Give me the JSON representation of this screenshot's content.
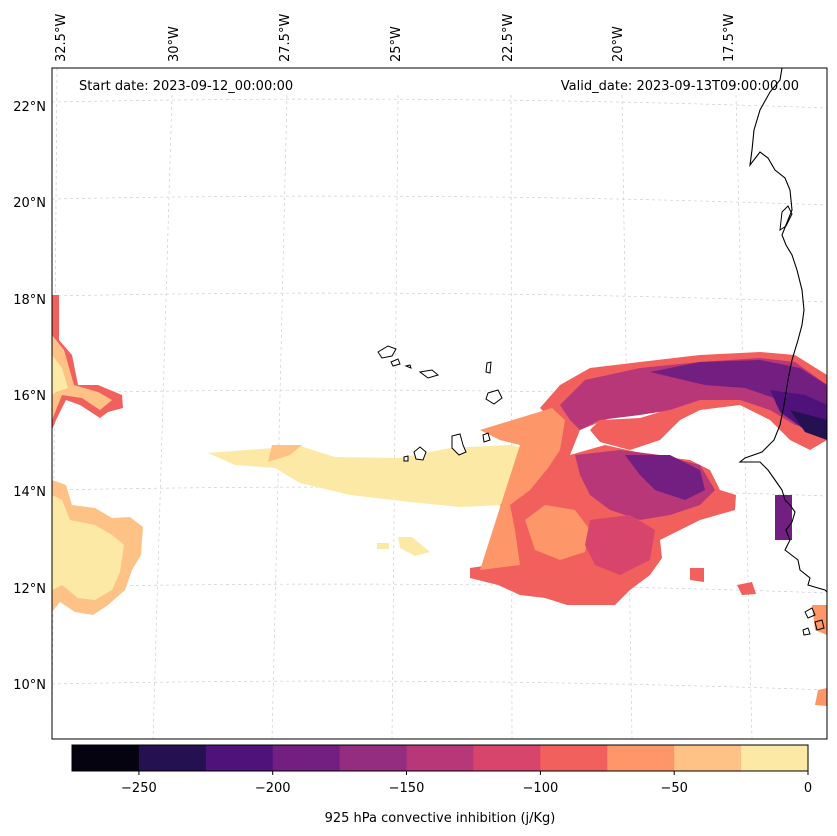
{
  "header": {
    "start_date": "Start date: 2023-09-12_00:00:00",
    "valid_date": "Valid_date: 2023-09-13T09:00:00.00"
  },
  "map": {
    "lon_labels": [
      "32.5°W",
      "30°W",
      "27.5°W",
      "25°W",
      "22.5°W",
      "20°W",
      "17.5°W"
    ],
    "lat_labels": [
      "22°N",
      "20°N",
      "18°N",
      "16°N",
      "14°N",
      "12°N",
      "10°N"
    ]
  },
  "colorbar": {
    "label": "925 hPa convective inhibition (j/Kg)",
    "ticks": [
      "−250",
      "−200",
      "−150",
      "−100",
      "−50",
      "0"
    ],
    "colors": [
      "#05030f",
      "#231151",
      "#4f127b",
      "#721f81",
      "#942c80",
      "#b73779",
      "#d8456c",
      "#f1605d",
      "#fd9668",
      "#fec287",
      "#fde9a6"
    ]
  }
}
